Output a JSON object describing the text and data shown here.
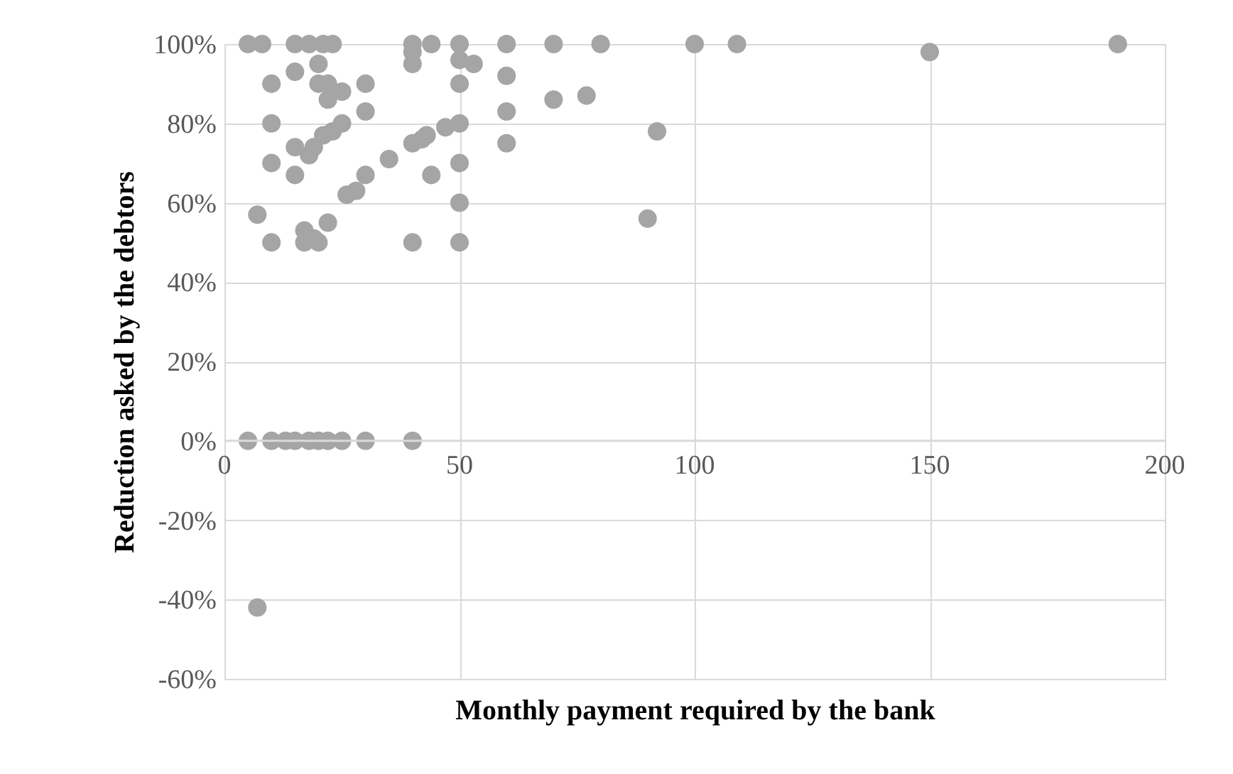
{
  "chart_data": {
    "type": "scatter",
    "xlabel": "Monthly payment required by the bank",
    "ylabel": "Reduction asked by the debtors",
    "x": [
      5,
      8,
      15,
      18,
      21,
      23,
      15,
      20,
      10,
      20,
      22,
      22,
      25,
      30,
      30,
      10,
      10,
      15,
      18,
      19,
      21,
      23,
      25,
      15,
      7,
      10,
      17,
      17,
      19,
      20,
      22,
      26,
      28,
      30,
      35,
      40,
      42,
      43,
      47,
      50,
      44,
      50,
      50,
      50,
      40,
      40,
      44,
      40,
      40,
      50,
      50,
      53,
      50,
      60,
      60,
      60,
      60,
      5,
      10,
      13,
      15,
      18,
      20,
      22,
      25,
      30,
      40,
      7,
      70,
      80,
      100,
      109,
      150,
      190,
      70,
      77,
      92,
      90
    ],
    "values": [
      100,
      100,
      100,
      100,
      100,
      100,
      93,
      95,
      90,
      90,
      90,
      86,
      88,
      90,
      83,
      80,
      70,
      74,
      72,
      74,
      77,
      78,
      80,
      67,
      57,
      50,
      50,
      53,
      51,
      50,
      55,
      62,
      63,
      67,
      71,
      75,
      76,
      77,
      79,
      80,
      67,
      70,
      60,
      50,
      50,
      100,
      100,
      98,
      95,
      100,
      96,
      95,
      90,
      100,
      92,
      83,
      75,
      0,
      0,
      0,
      0,
      0,
      0,
      0,
      0,
      0,
      0,
      -42,
      100,
      100,
      100,
      100,
      98,
      100,
      86,
      87,
      78,
      56
    ],
    "color": "#a5a5a5",
    "marker": "circle",
    "xlim": [
      0,
      200
    ],
    "xticks": [
      0,
      50,
      100,
      150,
      200
    ],
    "ylim": [
      -60,
      100
    ],
    "yticks": [
      {
        "value": -60,
        "label": "-60%"
      },
      {
        "value": -40,
        "label": "-40%"
      },
      {
        "value": -20,
        "label": "-20%"
      },
      {
        "value": 0,
        "label": "0%"
      },
      {
        "value": 20,
        "label": "20%"
      },
      {
        "value": 40,
        "label": "40%"
      },
      {
        "value": 60,
        "label": "60%"
      },
      {
        "value": 80,
        "label": "80%"
      },
      {
        "value": 100,
        "label": "100%"
      }
    ],
    "grid": true
  }
}
